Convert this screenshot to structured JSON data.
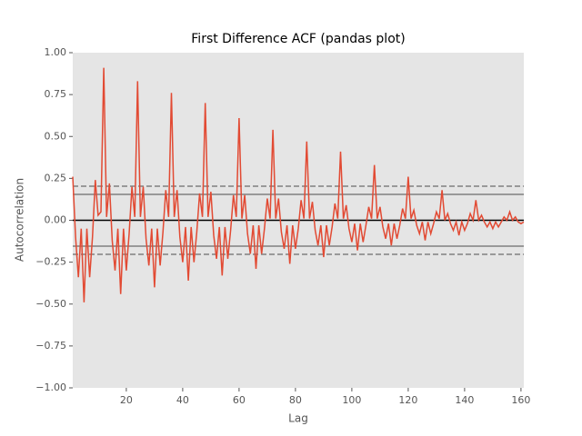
{
  "chart_data": {
    "type": "line",
    "title": "First Difference ACF (pandas plot)",
    "x_label": "Lag",
    "y_label": "Autocorrelation",
    "xlim": [
      1,
      161
    ],
    "ylim": [
      -1,
      1
    ],
    "xticks": [
      20,
      40,
      60,
      80,
      100,
      120,
      140,
      160
    ],
    "yticks": [
      {
        "value": -1,
        "label": "−1.00"
      },
      {
        "value": -0.75,
        "label": "−0.75"
      },
      {
        "value": -0.5,
        "label": "−0.50"
      },
      {
        "value": -0.25,
        "label": "−0.25"
      },
      {
        "value": 0,
        "label": "0.00"
      },
      {
        "value": 0.25,
        "label": "0.25"
      },
      {
        "value": 0.5,
        "label": "0.50"
      },
      {
        "value": 0.75,
        "label": "0.75"
      },
      {
        "value": 1,
        "label": "1.00"
      }
    ],
    "grid": false,
    "reference_lines": [
      {
        "value": 0.203,
        "style": "dashed",
        "color": "#808080"
      },
      {
        "value": 0.1545,
        "style": "solid",
        "color": "#808080"
      },
      {
        "value": 0,
        "style": "solid",
        "color": "#000000"
      },
      {
        "value": -0.1545,
        "style": "solid",
        "color": "#808080"
      },
      {
        "value": -0.203,
        "style": "dashed",
        "color": "#808080"
      }
    ],
    "series": [
      {
        "color": "#e24a33",
        "x": [
          1,
          2,
          3,
          4,
          5,
          6,
          7,
          8,
          9,
          10,
          11,
          12,
          13,
          14,
          15,
          16,
          17,
          18,
          19,
          20,
          21,
          22,
          23,
          24,
          25,
          26,
          27,
          28,
          29,
          30,
          31,
          32,
          33,
          34,
          35,
          36,
          37,
          38,
          39,
          40,
          41,
          42,
          43,
          44,
          45,
          46,
          47,
          48,
          49,
          50,
          51,
          52,
          53,
          54,
          55,
          56,
          57,
          58,
          59,
          60,
          61,
          62,
          63,
          64,
          65,
          66,
          67,
          68,
          69,
          70,
          71,
          72,
          73,
          74,
          75,
          76,
          77,
          78,
          79,
          80,
          81,
          82,
          83,
          84,
          85,
          86,
          87,
          88,
          89,
          90,
          91,
          92,
          93,
          94,
          95,
          96,
          97,
          98,
          99,
          100,
          101,
          102,
          103,
          104,
          105,
          106,
          107,
          108,
          109,
          110,
          111,
          112,
          113,
          114,
          115,
          116,
          117,
          118,
          119,
          120,
          121,
          122,
          123,
          124,
          125,
          126,
          127,
          128,
          129,
          130,
          131,
          132,
          133,
          134,
          135,
          136,
          137,
          138,
          139,
          140,
          141,
          142,
          143,
          144,
          145,
          146,
          147,
          148,
          149,
          150,
          151,
          152,
          153,
          154,
          155,
          156,
          157,
          158,
          159,
          160,
          161
        ],
        "values": [
          0.26,
          -0.1,
          -0.34,
          -0.05,
          -0.49,
          -0.05,
          -0.34,
          -0.1,
          0.24,
          0.03,
          0.05,
          0.91,
          0.02,
          0.22,
          -0.12,
          -0.3,
          -0.05,
          -0.44,
          -0.05,
          -0.3,
          -0.08,
          0.2,
          0.02,
          0.83,
          0.02,
          0.2,
          -0.11,
          -0.27,
          -0.05,
          -0.4,
          -0.05,
          -0.27,
          -0.07,
          0.18,
          0.02,
          0.76,
          0.02,
          0.18,
          -0.1,
          -0.25,
          -0.04,
          -0.36,
          -0.04,
          -0.25,
          -0.07,
          0.16,
          0.02,
          0.7,
          0.02,
          0.17,
          -0.09,
          -0.23,
          -0.04,
          -0.33,
          -0.04,
          -0.23,
          -0.06,
          0.15,
          0.02,
          0.61,
          0.01,
          0.15,
          -0.08,
          -0.2,
          -0.03,
          -0.29,
          -0.03,
          -0.2,
          -0.05,
          0.13,
          0.01,
          0.54,
          0.01,
          0.13,
          -0.07,
          -0.17,
          -0.03,
          -0.26,
          -0.03,
          -0.17,
          -0.05,
          0.12,
          0.01,
          0.47,
          0.01,
          0.11,
          -0.06,
          -0.15,
          -0.03,
          -0.22,
          -0.03,
          -0.15,
          -0.04,
          0.1,
          0.01,
          0.41,
          0.01,
          0.09,
          -0.05,
          -0.13,
          -0.02,
          -0.18,
          -0.02,
          -0.13,
          -0.03,
          0.08,
          0.01,
          0.33,
          0.01,
          0.08,
          -0.04,
          -0.11,
          -0.02,
          -0.15,
          -0.02,
          -0.11,
          -0.03,
          0.07,
          0.01,
          0.26,
          0.01,
          0.06,
          -0.03,
          -0.08,
          -0.01,
          -0.12,
          -0.01,
          -0.08,
          -0.02,
          0.05,
          0.01,
          0.18,
          0.0,
          0.04,
          -0.02,
          -0.06,
          -0.01,
          -0.09,
          -0.01,
          -0.06,
          -0.02,
          0.04,
          0.0,
          0.12,
          0.0,
          0.03,
          -0.01,
          -0.04,
          -0.01,
          -0.05,
          -0.01,
          -0.04,
          -0.01,
          0.02,
          0.0,
          0.05,
          0.0,
          0.02,
          -0.01,
          -0.02,
          -0.01
        ]
      }
    ]
  }
}
